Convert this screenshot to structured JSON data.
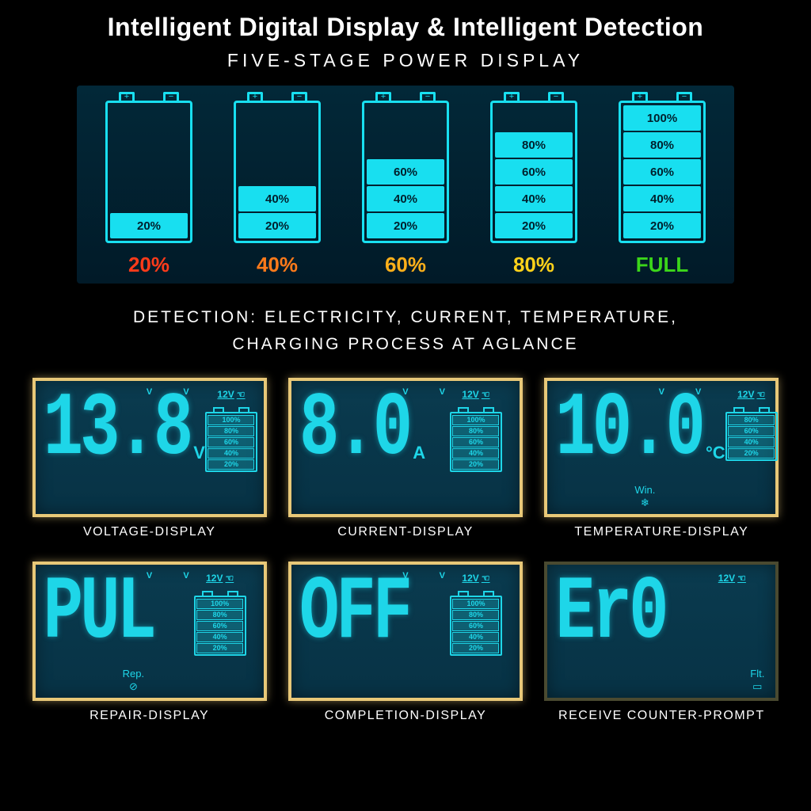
{
  "colors": {
    "background": "#000000",
    "panel_bg": "#022838",
    "lcd_bg": "#0a3b4f",
    "lcd_border": "#e8c878",
    "cyan": "#1ed6e8",
    "text": "#ffffff"
  },
  "header": {
    "title": "Intelligent Digital Display & Intelligent Detection",
    "subtitle": "FIVE-STAGE POWER DISPLAY"
  },
  "stages": [
    {
      "label": "20%",
      "label_color": "#ff3b1a",
      "fill": 1,
      "bar_color": "#18dff0",
      "outline": "#18dff0"
    },
    {
      "label": "40%",
      "label_color": "#ff7a1a",
      "fill": 2,
      "bar_color": "#18dff0",
      "outline": "#18dff0"
    },
    {
      "label": "60%",
      "label_color": "#ffb01a",
      "fill": 3,
      "bar_color": "#18dff0",
      "outline": "#18dff0"
    },
    {
      "label": "80%",
      "label_color": "#ffd21a",
      "fill": 4,
      "bar_color": "#18dff0",
      "outline": "#18dff0"
    },
    {
      "label": "FULL",
      "label_color": "#3bd61a",
      "fill": 5,
      "bar_color": "#18dff0",
      "outline": "#18dff0"
    }
  ],
  "stage_bar_texts": [
    "20%",
    "40%",
    "60%",
    "80%",
    "100%"
  ],
  "detection_title_l1": "DETECTION: ELECTRICITY, CURRENT, TEMPERATURE,",
  "detection_title_l2": "CHARGING PROCESS AT AGLANCE",
  "mini_batt_levels_5": [
    "20%",
    "40%",
    "60%",
    "80%",
    "100%"
  ],
  "mini_batt_levels_4": [
    "20%",
    "40%",
    "60%",
    "80%"
  ],
  "screens": [
    {
      "readout": "13.8",
      "unit": "V",
      "mode": "12V",
      "mini_levels": 5,
      "note": null,
      "frame": true,
      "vv": "V",
      "label": "VOLTAGE-DISPLAY"
    },
    {
      "readout": "8.0",
      "unit": "A",
      "mode": "12V",
      "mini_levels": 5,
      "note": null,
      "frame": true,
      "vv": "V",
      "label": "CURRENT-DISPLAY"
    },
    {
      "readout": "10.0",
      "unit": "°C",
      "mode": "12V",
      "mini_levels": 4,
      "note": {
        "pos": "left",
        "text": "Win.",
        "icon": "❄"
      },
      "frame": true,
      "vv": "V",
      "label": "TEMPERATURE-DISPLAY"
    },
    {
      "readout": "PUL",
      "unit": "",
      "mode": "12V",
      "mini_levels": 5,
      "note": {
        "pos": "left",
        "text": "Rep.",
        "icon": "⊘"
      },
      "frame": true,
      "vv": "V",
      "label": "REPAIR-DISPLAY"
    },
    {
      "readout": "OFF",
      "unit": "",
      "mode": "12V",
      "mini_levels": 5,
      "note": null,
      "frame": true,
      "vv": "V",
      "label": "COMPLETION-DISPLAY"
    },
    {
      "readout": "Er0",
      "unit": "",
      "mode": "12V",
      "mini_levels": 0,
      "note": {
        "pos": "right",
        "text": "Flt.",
        "icon": "▭"
      },
      "frame": false,
      "vv": "",
      "label": "RECEIVE COUNTER-PROMPT"
    }
  ]
}
